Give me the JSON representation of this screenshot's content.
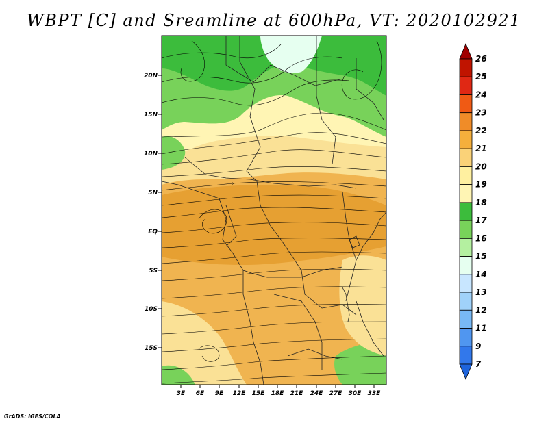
{
  "title": "WBPT [C] and Sreamline at 600hPa, VT: 2020102921",
  "footer": "GrADS: IGES/COLA",
  "map": {
    "lat_labels": [
      "20N",
      "15N",
      "10N",
      "5N",
      "EQ",
      "5S",
      "10S",
      "15S"
    ],
    "lon_labels": [
      "3E",
      "6E",
      "9E",
      "12E",
      "15E",
      "18E",
      "21E",
      "24E",
      "27E",
      "30E",
      "33E"
    ],
    "fill_colors": {
      "green_dark": "#3cbc3c",
      "green_mid": "#78d25a",
      "green_light": "#b4f0a0",
      "pale_blue": "#e6fff0",
      "yellow_light": "#fff5b4",
      "yellow": "#fae196",
      "orange_light": "#f0b450",
      "orange": "#e6a032"
    }
  },
  "colorbar": {
    "labels": [
      "26",
      "25",
      "24",
      "23",
      "22",
      "21",
      "20",
      "19",
      "18",
      "17",
      "16",
      "15",
      "14",
      "13",
      "12",
      "11",
      "9",
      "7"
    ],
    "colors": [
      "#a00000",
      "#c01400",
      "#e02814",
      "#f05a14",
      "#f08c28",
      "#f5af3c",
      "#fad278",
      "#fff0a0",
      "#fff5b4",
      "#3cbc3c",
      "#78d25a",
      "#b4f0a0",
      "#e6fff0",
      "#c8e6ff",
      "#a0d2fa",
      "#78b9f5",
      "#5096f0",
      "#3278eb",
      "#1e64dc"
    ]
  }
}
